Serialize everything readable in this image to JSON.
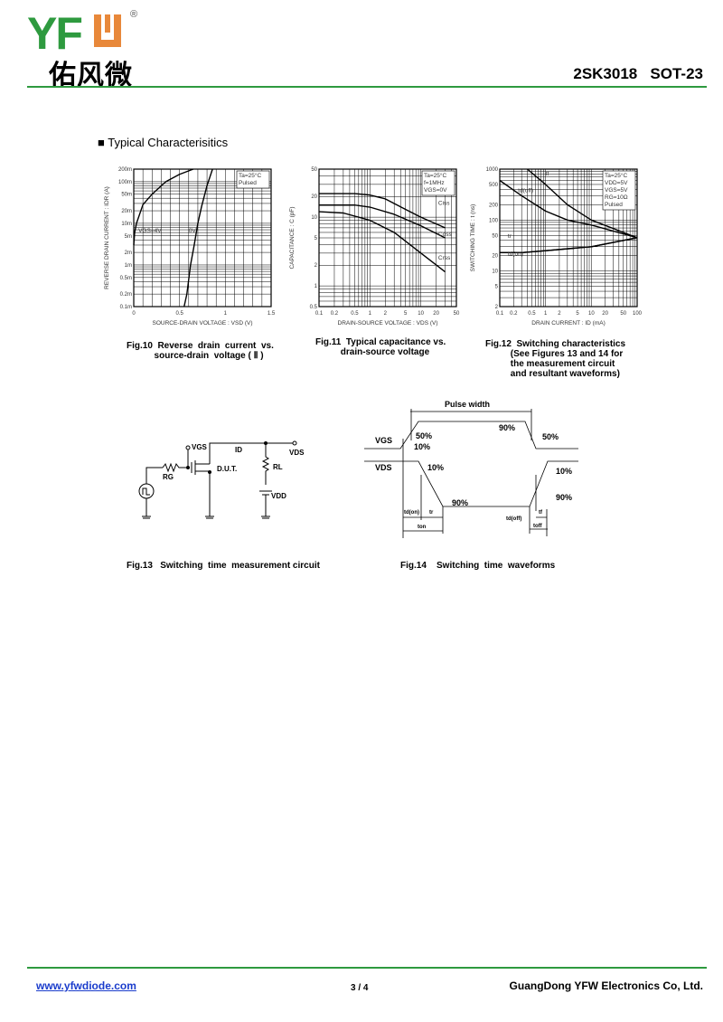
{
  "header": {
    "logo_text": "YFW",
    "logo_cn": "佑风微",
    "part": "2SK3018   SOT-23",
    "colors": {
      "green": "#2e9a3f",
      "orange": "#e8883a"
    }
  },
  "section_title": "■ Typical  Characterisitics",
  "chart_data": [
    {
      "type": "line",
      "id": "fig10",
      "xscale": "linear",
      "yscale": "log",
      "xlim": [
        0,
        1.5
      ],
      "ylim": [
        0.1,
        200
      ],
      "xticks": [
        "0",
        "0.5",
        "1",
        "1.5"
      ],
      "xtick_values": [
        0,
        0.5,
        1,
        1.5
      ],
      "yticks": [
        "200m",
        "100m",
        "50m",
        "20m",
        "10m",
        "5m",
        "2m",
        "1m",
        "0.5m",
        "0.2m",
        "0.1m"
      ],
      "ytick_values": [
        200,
        100,
        50,
        20,
        10,
        5,
        2,
        1,
        0.5,
        0.2,
        0.1
      ],
      "xlabel": "SOURCE-DRAIN  VOLTAGE : VSD (V)",
      "ylabel": "REVERSE  DRAIN  CURRENT : IDR (A)",
      "legend": [
        "Ta=25°C",
        "Pulsed"
      ],
      "series": [
        {
          "name": "VGS=4V",
          "points": [
            [
              0,
              3
            ],
            [
              0.01,
              6
            ],
            [
              0.03,
              10
            ],
            [
              0.1,
              28
            ],
            [
              0.2,
              50
            ],
            [
              0.35,
              100
            ],
            [
              0.5,
              150
            ],
            [
              0.65,
              200
            ]
          ]
        },
        {
          "name": "0V",
          "points": [
            [
              0.55,
              0.1
            ],
            [
              0.58,
              0.2
            ],
            [
              0.62,
              1
            ],
            [
              0.66,
              3
            ],
            [
              0.7,
              10
            ],
            [
              0.74,
              25
            ],
            [
              0.8,
              80
            ],
            [
              0.86,
              200
            ]
          ]
        }
      ],
      "caption": "Fig.10  Reverse  drain  current  vs.\n           source-drain  voltage ( Ⅱ )"
    },
    {
      "type": "line",
      "id": "fig11",
      "xscale": "log",
      "yscale": "log",
      "xlim": [
        0.1,
        50
      ],
      "ylim": [
        0.5,
        50
      ],
      "xticks": [
        "0.1",
        "0.2",
        "0.5",
        "1",
        "2",
        "5",
        "10",
        "20",
        "50"
      ],
      "xtick_values": [
        0.1,
        0.2,
        0.5,
        1,
        2,
        5,
        10,
        20,
        50
      ],
      "yticks": [
        "50",
        "20",
        "10",
        "5",
        "2",
        "1",
        "0.5"
      ],
      "ytick_values": [
        50,
        20,
        10,
        5,
        2,
        1,
        0.5
      ],
      "xlabel": "DRAIN-SOURCE  VOLTAGE : VDS (V)",
      "ylabel": "CAPACITANCE : C (pF)",
      "legend": [
        "Ta=25°C",
        "f=1MHz",
        "VGS=0V"
      ],
      "series": [
        {
          "name": "Ciss",
          "points": [
            [
              0.1,
              22
            ],
            [
              0.5,
              22
            ],
            [
              1,
              21
            ],
            [
              2,
              18.5
            ],
            [
              5,
              13
            ],
            [
              10,
              10
            ],
            [
              30,
              7
            ]
          ]
        },
        {
          "name": "Coss",
          "points": [
            [
              0.1,
              15
            ],
            [
              0.5,
              15
            ],
            [
              1,
              14
            ],
            [
              3,
              11
            ],
            [
              10,
              7.5
            ],
            [
              30,
              5
            ]
          ]
        },
        {
          "name": "Crss",
          "points": [
            [
              0.1,
              12
            ],
            [
              0.3,
              11.5
            ],
            [
              1,
              9
            ],
            [
              3,
              6
            ],
            [
              10,
              3
            ],
            [
              30,
              1.6
            ]
          ]
        }
      ],
      "caption": "Fig.11  Typical capacitance vs.\n          drain-source voltage"
    },
    {
      "type": "line",
      "id": "fig12",
      "xscale": "log",
      "yscale": "log",
      "xlim": [
        0.1,
        100
      ],
      "ylim": [
        2,
        1000
      ],
      "xticks": [
        "0.1",
        "0.2",
        "0.5",
        "1",
        "2",
        "5",
        "10",
        "20",
        "50",
        "100"
      ],
      "xtick_values": [
        0.1,
        0.2,
        0.5,
        1,
        2,
        5,
        10,
        20,
        50,
        100
      ],
      "yticks": [
        "1000",
        "500",
        "200",
        "100",
        "50",
        "20",
        "10",
        "5",
        "2"
      ],
      "ytick_values": [
        1000,
        500,
        200,
        100,
        50,
        20,
        10,
        5,
        2
      ],
      "xlabel": "DRAIN  CURRENT : ID (mA)",
      "ylabel": "SWITCHING  TIME : t (ns)",
      "legend": [
        "Ta=25°C",
        "VDD=5V",
        "VGS=5V",
        "RG=10Ω",
        "Pulsed"
      ],
      "series": [
        {
          "name": "tf",
          "points": [
            [
              0.4,
              1000
            ],
            [
              1,
              500
            ],
            [
              3,
              200
            ],
            [
              10,
              100
            ],
            [
              100,
              45
            ]
          ]
        },
        {
          "name": "td(off)",
          "points": [
            [
              0.1,
              600
            ],
            [
              0.3,
              300
            ],
            [
              1,
              150
            ],
            [
              3,
              100
            ],
            [
              10,
              80
            ],
            [
              100,
              45
            ]
          ]
        },
        {
          "name": "tr",
          "points": [
            [
              0.1,
              23
            ],
            [
              0.3,
              23
            ],
            [
              1,
              25
            ],
            [
              10,
              30
            ],
            [
              100,
              45
            ]
          ]
        },
        {
          "name": "td(on)",
          "points": [
            [
              0.1,
              23
            ],
            [
              0.3,
              23
            ],
            [
              1,
              25
            ],
            [
              10,
              30
            ],
            [
              100,
              45
            ]
          ]
        }
      ],
      "caption": "Fig.12  Switching characteristics\n          (See Figures 13 and 14 for\n          the measurement circuit\n          and resultant waveforms)"
    }
  ],
  "fig13": {
    "vgs": "VGS",
    "id": "ID",
    "vds": "VDS",
    "rg": "RG",
    "rl": "RL",
    "dut": "D.U.T.",
    "vdd": "VDD",
    "caption": "Fig.13   Switching  time  measurement circuit"
  },
  "fig14": {
    "pulse_width": "Pulse width",
    "vgs": "VGS",
    "vds": "VDS",
    "p50a": "50%",
    "p10a": "10%",
    "p90a": "90%",
    "p50b": "50%",
    "p10b": "10%",
    "p90b": "90%",
    "p10c": "10%",
    "p90c": "90%",
    "td_on": "td(on)",
    "tr": "tr",
    "ton": "ton",
    "td_off": "td(off)",
    "tf": "tf",
    "toff": "toff",
    "caption": "Fig.14    Switching  time  waveforms"
  },
  "footer": {
    "url": "www.yfwdiode.com",
    "page": "3 / 4",
    "company": "GuangDong YFW Electronics Co, Ltd."
  }
}
